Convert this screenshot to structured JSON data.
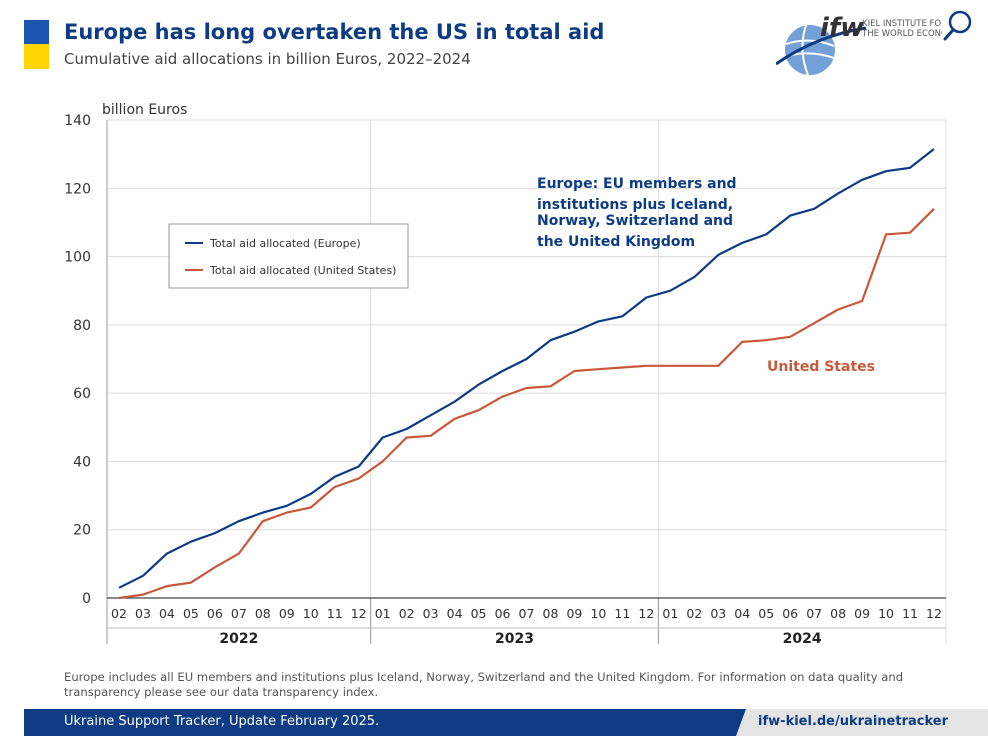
{
  "header": {
    "title": "Europe has long overtaken the US in total aid",
    "subtitle": "Cumulative aid allocations in billion Euros, 2022–2024"
  },
  "logo": {
    "mark": "ifw",
    "line1": "KIEL INSTITUTE FOR",
    "line2": "THE WORLD ECONOMY"
  },
  "colors": {
    "flag_blue": "#1a56b0",
    "flag_yellow": "#ffd500",
    "europe": "#0d3c84",
    "us": "#c9583a",
    "grid": "#dcdcdc",
    "axis": "#444444"
  },
  "chart_data": {
    "type": "line",
    "ylabel": "billion Euros",
    "ylim": [
      0,
      140
    ],
    "yticks": [
      0,
      20,
      40,
      60,
      80,
      100,
      120,
      140
    ],
    "grid": true,
    "years": [
      {
        "label": "2022",
        "months": [
          "02",
          "03",
          "04",
          "05",
          "06",
          "07",
          "08",
          "09",
          "10",
          "11",
          "12"
        ]
      },
      {
        "label": "2023",
        "months": [
          "01",
          "02",
          "03",
          "04",
          "05",
          "06",
          "07",
          "08",
          "09",
          "10",
          "11",
          "12"
        ]
      },
      {
        "label": "2024",
        "months": [
          "01",
          "02",
          "03",
          "04",
          "05",
          "06",
          "07",
          "08",
          "09",
          "10",
          "11",
          "12"
        ]
      }
    ],
    "series": [
      {
        "name": "Total aid allocated (Europe)",
        "color": "#0d3c84",
        "values": [
          3,
          6.5,
          13,
          16.5,
          19,
          22.5,
          25,
          27,
          30.5,
          35.5,
          38.5,
          47,
          49.5,
          53.5,
          57.5,
          62.5,
          66.5,
          70,
          75.5,
          78,
          81,
          82.5,
          88,
          90,
          94,
          100.5,
          104,
          106.5,
          112,
          114,
          118.5,
          122.5,
          125,
          126,
          131.5
        ]
      },
      {
        "name": "Total aid allocated (United States)",
        "color": "#c9583a",
        "values": [
          0,
          1,
          3.5,
          4.5,
          9,
          13,
          22.5,
          25,
          26.5,
          32.5,
          35,
          40,
          47,
          47.5,
          52.5,
          55,
          59,
          61.5,
          62,
          66.5,
          67,
          67.5,
          68,
          68,
          68,
          68,
          75,
          75.5,
          76.5,
          80.5,
          84.5,
          87,
          106.5,
          107,
          114
        ]
      }
    ],
    "annotations": [
      {
        "lines": [
          "Europe: EU members and",
          "institutions plus Iceland,",
          "Norway, Switzerland and",
          "the United Kingdom"
        ],
        "color": "#0d3c84"
      },
      {
        "lines": [
          "United States"
        ],
        "color": "#c9583a"
      }
    ],
    "legend_position": "top-left"
  },
  "footnote": "Europe includes all EU members and institutions plus Iceland, Norway, Switzerland and the United Kingdom. For information on data quality and transparency please see our data transparency index.",
  "footer": {
    "left": "Ukraine Support Tracker, Update February 2025.",
    "right": "ifw-kiel.de/ukrainetracker"
  }
}
